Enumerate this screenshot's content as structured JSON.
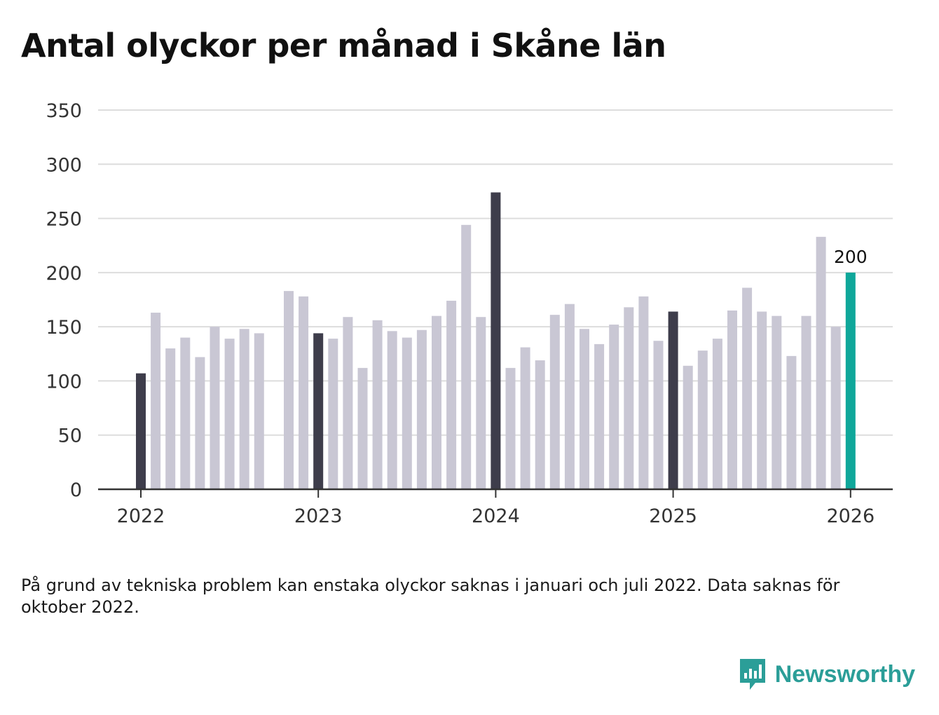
{
  "title": "Antal olyckor per månad i Skåne län",
  "footnote": "På grund av tekniska problem kan enstaka olyckor saknas i januari och juli 2022. Data saknas för oktober 2022.",
  "brand": {
    "name": "Newsworthy",
    "icon": "newsworthy-logo-icon"
  },
  "colors": {
    "bar_default": "#c9c7d4",
    "bar_january": "#3e3d4b",
    "bar_latest": "#0fa79a",
    "grid": "#dddddd",
    "axis": "#333333",
    "text": "#333333"
  },
  "chart_data": {
    "type": "bar",
    "title": "Antal olyckor per månad i Skåne län",
    "xlabel": "",
    "ylabel": "",
    "ylim": [
      0,
      350
    ],
    "yticks": [
      0,
      50,
      100,
      150,
      200,
      250,
      300,
      350
    ],
    "xticks": [
      "2022",
      "2023",
      "2024",
      "2025",
      "2026"
    ],
    "grid": true,
    "months": [
      "2022-01",
      "2022-02",
      "2022-03",
      "2022-04",
      "2022-05",
      "2022-06",
      "2022-07",
      "2022-08",
      "2022-09",
      "2022-10",
      "2022-11",
      "2022-12",
      "2023-01",
      "2023-02",
      "2023-03",
      "2023-04",
      "2023-05",
      "2023-06",
      "2023-07",
      "2023-08",
      "2023-09",
      "2023-10",
      "2023-11",
      "2023-12",
      "2024-01",
      "2024-02",
      "2024-03",
      "2024-04",
      "2024-05",
      "2024-06",
      "2024-07",
      "2024-08",
      "2024-09",
      "2024-10",
      "2024-11",
      "2024-12",
      "2025-01",
      "2025-02",
      "2025-03",
      "2025-04",
      "2025-05",
      "2025-06",
      "2025-07",
      "2025-08",
      "2025-09",
      "2025-10",
      "2025-11",
      "2025-12",
      "2026-01"
    ],
    "values": [
      107,
      163,
      130,
      140,
      122,
      150,
      139,
      148,
      144,
      null,
      183,
      178,
      144,
      139,
      159,
      112,
      156,
      146,
      140,
      147,
      160,
      174,
      244,
      159,
      274,
      112,
      131,
      119,
      161,
      171,
      148,
      134,
      152,
      168,
      178,
      137,
      164,
      114,
      128,
      139,
      165,
      186,
      164,
      160,
      123,
      160,
      233,
      150,
      200
    ],
    "annotations": [
      {
        "month": "2026-01",
        "text": "200"
      }
    ]
  }
}
